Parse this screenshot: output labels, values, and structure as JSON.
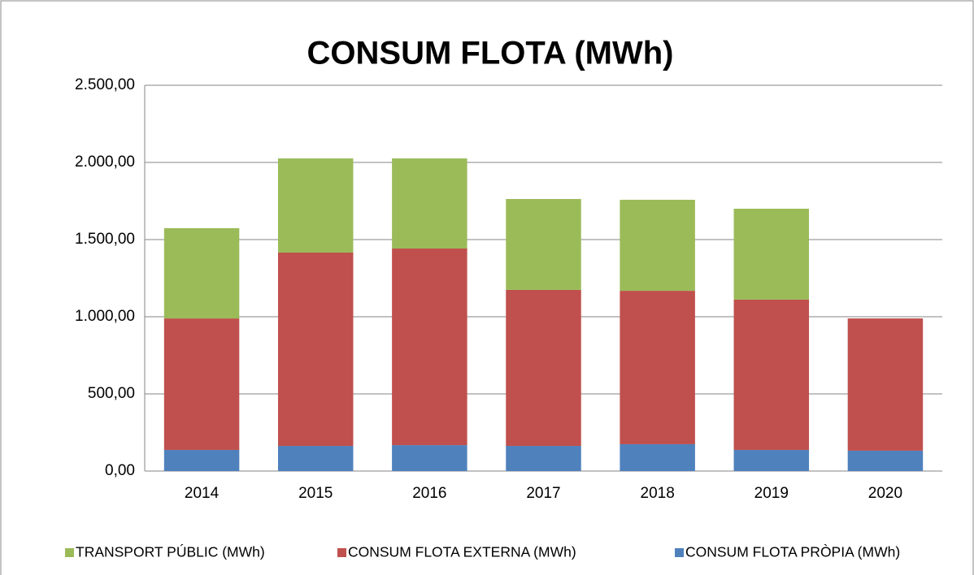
{
  "chart_data": {
    "type": "stacked_bar",
    "title": "CONSUM FLOTA (MWh)",
    "categories": [
      "2014",
      "2015",
      "2016",
      "2017",
      "2018",
      "2019",
      "2020"
    ],
    "series": [
      {
        "name": "TRANSPORT PÚBLIC (MWh)",
        "color": "#9bbb59",
        "values": [
          585,
          610,
          584,
          589,
          590,
          589,
          0
        ]
      },
      {
        "name": "CONSUM FLOTA EXTERNA (MWh)",
        "color": "#c0504d",
        "values": [
          852,
          1253,
          1274,
          1011,
          994,
          974,
          857
        ]
      },
      {
        "name": "CONSUM FLOTA PRÒPIA (MWh)",
        "color": "#4f81bd",
        "values": [
          137,
          163,
          168,
          163,
          174,
          137,
          132
        ]
      }
    ],
    "ylim": [
      0,
      2500
    ],
    "yticks": [
      {
        "value": 0,
        "label": "0,00"
      },
      {
        "value": 500,
        "label": "500,00"
      },
      {
        "value": 1000,
        "label": "1.000,00"
      },
      {
        "value": 1500,
        "label": "1.500,00"
      },
      {
        "value": 2000,
        "label": "2.000,00"
      },
      {
        "value": 2500,
        "label": "2.500,00"
      }
    ],
    "grid": true,
    "legend": "bottom"
  }
}
